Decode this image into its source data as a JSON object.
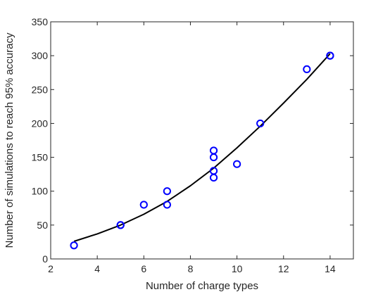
{
  "chart_data": {
    "type": "scatter",
    "xlabel": "Number of charge types",
    "ylabel": "Number of simulations to reach 95% accuracy",
    "xlim": [
      2,
      15
    ],
    "ylim": [
      0,
      350
    ],
    "xticks": [
      2,
      4,
      6,
      8,
      10,
      12,
      14
    ],
    "yticks": [
      0,
      50,
      100,
      150,
      200,
      250,
      300,
      350
    ],
    "grid": false,
    "box": true,
    "series": [
      {
        "kind": "scatter",
        "marker": "open-circle",
        "color": "#0000ff",
        "x": [
          3,
          5,
          5,
          6,
          7,
          7,
          9,
          9,
          9,
          9,
          10,
          11,
          13,
          14,
          14
        ],
        "y": [
          20,
          50,
          50,
          80,
          80,
          100,
          120,
          130,
          150,
          160,
          140,
          200,
          280,
          300,
          300
        ]
      },
      {
        "kind": "line",
        "color": "#000000",
        "x": [
          3,
          4,
          5,
          6,
          7,
          8,
          9,
          10,
          11,
          12,
          13,
          14
        ],
        "y": [
          26,
          37,
          50,
          66,
          85,
          108,
          134,
          164,
          196,
          230,
          265,
          303
        ]
      }
    ]
  }
}
